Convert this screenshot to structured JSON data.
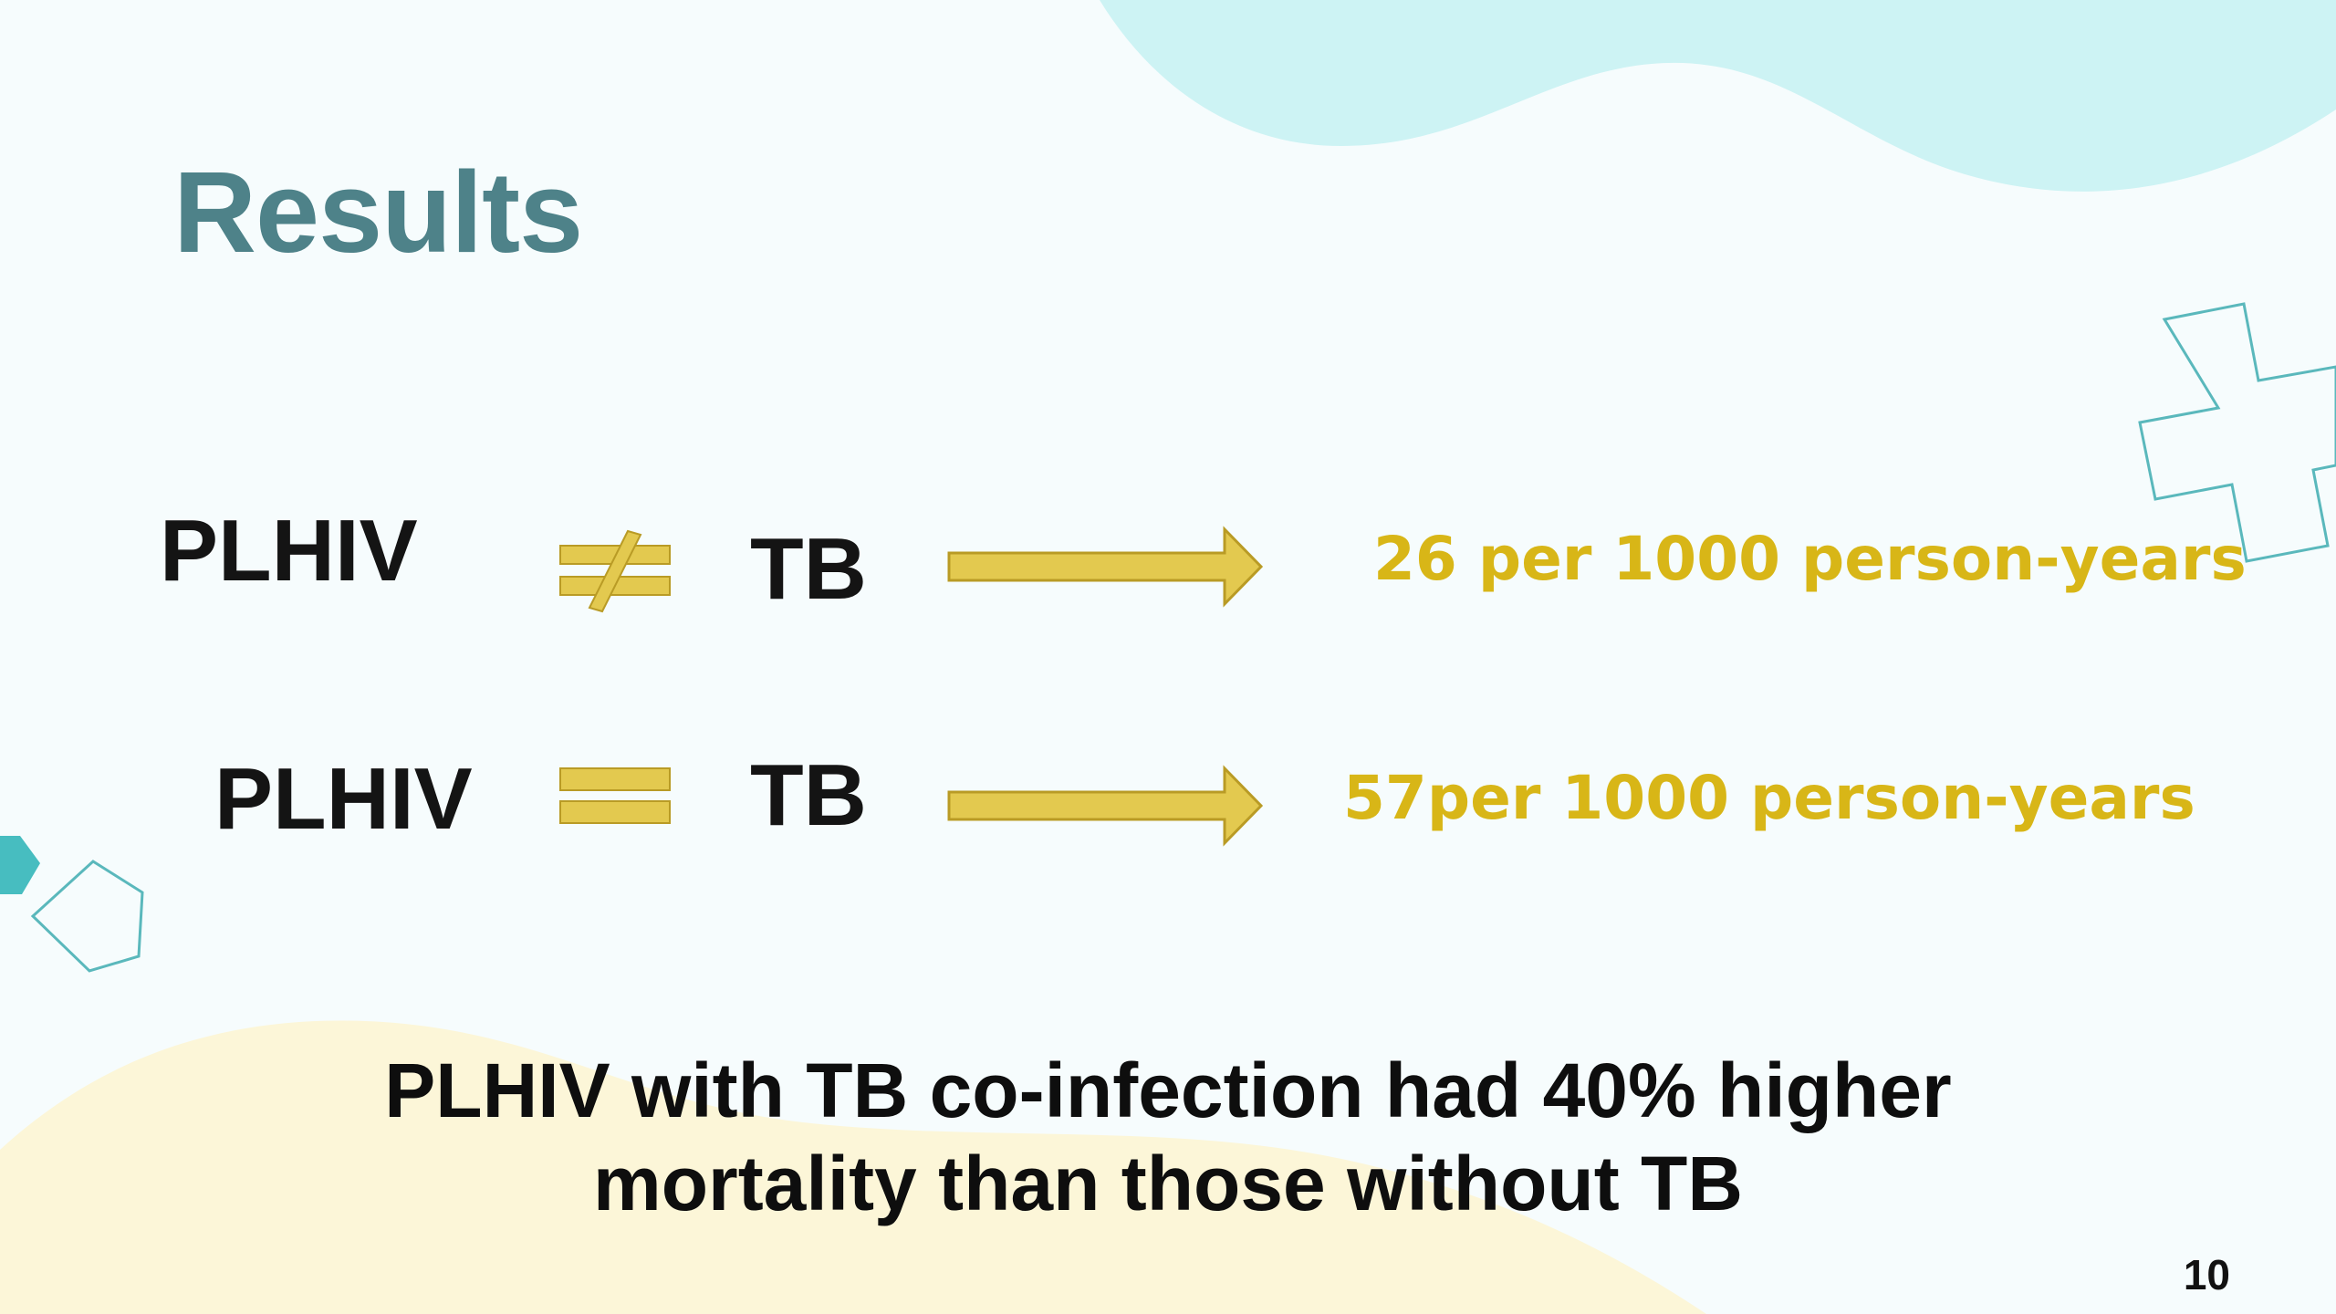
{
  "slide": {
    "title": "Results",
    "page_number": "10",
    "colors": {
      "title": "#4e8289",
      "accent_yellow": "#e3c94f",
      "rate_text": "#d8b617",
      "teal_shape": "#cdf3f4",
      "cream_shape": "#fcf6d8",
      "outline_teal": "#5ab8bc"
    }
  },
  "rows": [
    {
      "left_label": "PLHIV",
      "relation_icon": "not-equal-icon",
      "right_label": "TB",
      "arrow_icon": "right-arrow-icon",
      "rate": "26 per 1000 person-years"
    },
    {
      "left_label": "PLHIV",
      "relation_icon": "equal-icon",
      "right_label": "TB",
      "arrow_icon": "right-arrow-icon",
      "rate": "57per 1000 person-years"
    }
  ],
  "conclusion": {
    "line1": "PLHIV with TB co-infection had 40% higher",
    "line2": "mortality than those without TB"
  },
  "decorations": [
    "cross-outline-icon",
    "pentagon-outline-icon",
    "hexagon-icon"
  ]
}
